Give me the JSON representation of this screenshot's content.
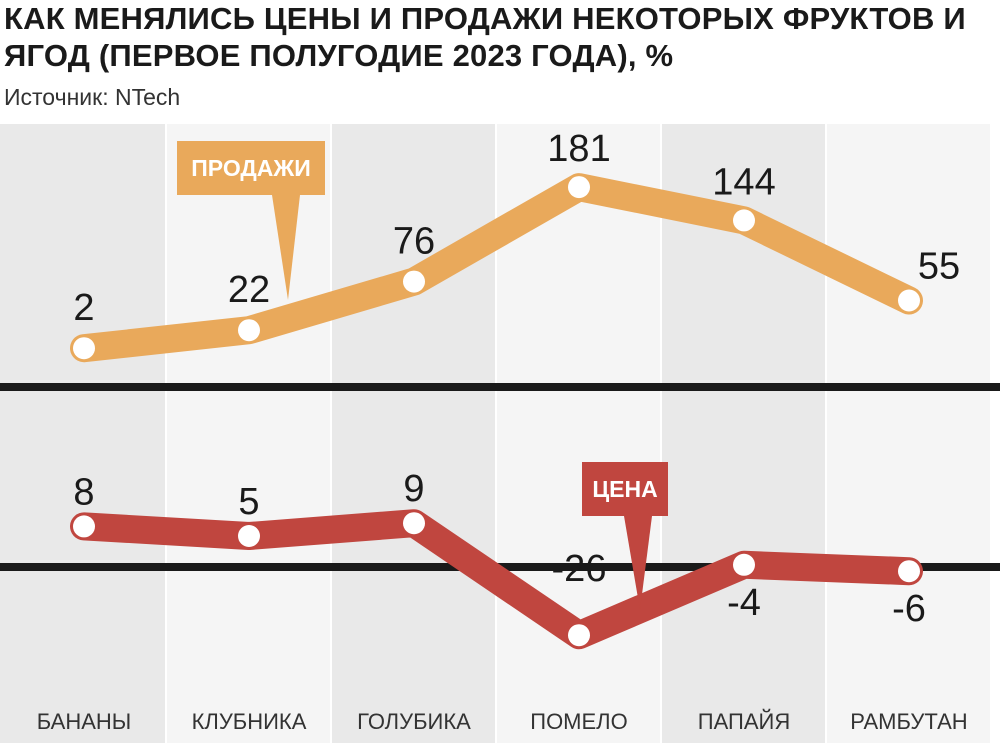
{
  "title": "КАК МЕНЯЛИСЬ ЦЕНЫ И ПРОДАЖИ НЕКОТОРЫХ ФРУКТОВ И ЯГОД (ПЕРВОЕ ПОЛУГОДИЕ 2023 ГОДА), %",
  "source": "Источник: NTech",
  "chart_data": {
    "type": "line",
    "categories": [
      "БАНАНЫ",
      "КЛУБНИКА",
      "ГОЛУБИКА",
      "ПОМЕЛО",
      "ПАПАЙЯ",
      "РАМБУТАН"
    ],
    "series": [
      {
        "name": "ПРОДАЖИ",
        "values": [
          2,
          22,
          76,
          181,
          144,
          55
        ],
        "color": "#e9a95b"
      },
      {
        "name": "ЦЕНА",
        "values": [
          8,
          5,
          9,
          -26,
          -4,
          -6
        ],
        "color": "#c0463f"
      }
    ],
    "value_labels": {
      "sales": [
        "2",
        "22",
        "76",
        "181",
        "144",
        "55"
      ],
      "price": [
        "8",
        "5",
        "9",
        "-26",
        "-4",
        "-6"
      ]
    },
    "unit": "%",
    "grid": false,
    "background_colors": [
      "#e9e9e9",
      "#f5f5f5"
    ]
  }
}
